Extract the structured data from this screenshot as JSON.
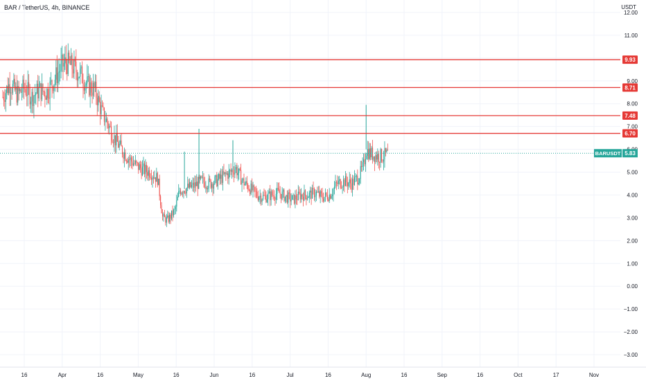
{
  "chart_data": {
    "type": "candlestick",
    "title": "BAR / TetherUS, 4h, BINANCE",
    "unit": "USDT",
    "ylim": [
      -3.0,
      12.0
    ],
    "y_ticks": [
      -3,
      -2,
      -1,
      0,
      1,
      2,
      3,
      4,
      5,
      6,
      7,
      8,
      9,
      10,
      11,
      12
    ],
    "y_tick_labels": [
      "−3.00",
      "−2.00",
      "−1.00",
      "0.00",
      "1.00",
      "2.00",
      "3.00",
      "4.00",
      "5.00",
      "6.00",
      "7.00",
      "8.00",
      "9.00",
      "10.00",
      "11.00",
      "12.00"
    ],
    "x_ticks": [
      "16",
      "Apr",
      "16",
      "May",
      "16",
      "Jun",
      "16",
      "Jul",
      "16",
      "Aug",
      "16",
      "Sep",
      "16",
      "Oct",
      "17",
      "Nov"
    ],
    "horizontal_levels": [
      {
        "value": 9.93,
        "label": "9.93"
      },
      {
        "value": 8.71,
        "label": "8.71"
      },
      {
        "value": 7.48,
        "label": "7.48"
      },
      {
        "value": 6.7,
        "label": "6.70"
      }
    ],
    "last_price": {
      "symbol": "BARUSDT",
      "value": 5.83,
      "label": "5.83"
    },
    "price_path": [
      [
        "2021-03-07",
        8.3
      ],
      [
        "2021-03-10",
        8.9
      ],
      [
        "2021-03-13",
        8.4
      ],
      [
        "2021-03-16",
        8.7
      ],
      [
        "2021-03-19",
        8.3
      ],
      [
        "2021-03-22",
        8.6
      ],
      [
        "2021-03-25",
        8.5
      ],
      [
        "2021-03-28",
        9.0
      ],
      [
        "2021-03-31",
        9.6
      ],
      [
        "2021-04-02",
        9.8
      ],
      [
        "2021-04-05",
        9.6
      ],
      [
        "2021-04-08",
        9.3
      ],
      [
        "2021-04-11",
        8.8
      ],
      [
        "2021-04-14",
        8.6
      ],
      [
        "2021-04-17",
        7.6
      ],
      [
        "2021-04-19",
        7.2
      ],
      [
        "2021-04-22",
        6.5
      ],
      [
        "2021-04-25",
        6.0
      ],
      [
        "2021-04-28",
        5.6
      ],
      [
        "2021-05-01",
        5.3
      ],
      [
        "2021-05-04",
        5.1
      ],
      [
        "2021-05-07",
        5.0
      ],
      [
        "2021-05-10",
        4.7
      ],
      [
        "2021-05-12",
        3.0
      ],
      [
        "2021-05-14",
        2.9
      ],
      [
        "2021-05-17",
        3.3
      ],
      [
        "2021-05-19",
        4.2
      ],
      [
        "2021-05-22",
        4.3
      ],
      [
        "2021-05-25",
        4.4
      ],
      [
        "2021-05-28",
        4.6
      ],
      [
        "2021-05-31",
        4.5
      ],
      [
        "2021-06-03",
        4.6
      ],
      [
        "2021-06-06",
        4.8
      ],
      [
        "2021-06-09",
        5.0
      ],
      [
        "2021-06-11",
        5.2
      ],
      [
        "2021-06-14",
        4.6
      ],
      [
        "2021-06-17",
        4.3
      ],
      [
        "2021-06-20",
        4.0
      ],
      [
        "2021-06-23",
        3.9
      ],
      [
        "2021-06-26",
        4.0
      ],
      [
        "2021-06-29",
        4.1
      ],
      [
        "2021-07-02",
        3.9
      ],
      [
        "2021-07-05",
        3.8
      ],
      [
        "2021-07-08",
        4.0
      ],
      [
        "2021-07-11",
        4.0
      ],
      [
        "2021-07-14",
        4.1
      ],
      [
        "2021-07-17",
        3.9
      ],
      [
        "2021-07-20",
        4.0
      ],
      [
        "2021-07-23",
        4.5
      ],
      [
        "2021-07-26",
        4.6
      ],
      [
        "2021-07-29",
        4.5
      ],
      [
        "2021-08-01",
        4.8
      ],
      [
        "2021-08-03",
        5.3
      ],
      [
        "2021-08-04",
        6.0
      ],
      [
        "2021-08-06",
        5.8
      ],
      [
        "2021-08-09",
        5.7
      ],
      [
        "2021-08-11",
        5.7
      ],
      [
        "2021-08-13",
        5.8
      ]
    ],
    "wick_spikes": [
      {
        "date": "2021-05-21",
        "high": 5.9
      },
      {
        "date": "2021-05-27",
        "high": 6.9
      },
      {
        "date": "2021-06-10",
        "high": 6.4
      },
      {
        "date": "2021-08-04",
        "high": 7.95
      }
    ],
    "colors": {
      "up": "#26a69a",
      "down": "#ef5350",
      "level_line": "#e53935",
      "last_price_line": "#26a69a",
      "grid": "#f0f3fa",
      "text": "#131722"
    },
    "grid": true
  }
}
